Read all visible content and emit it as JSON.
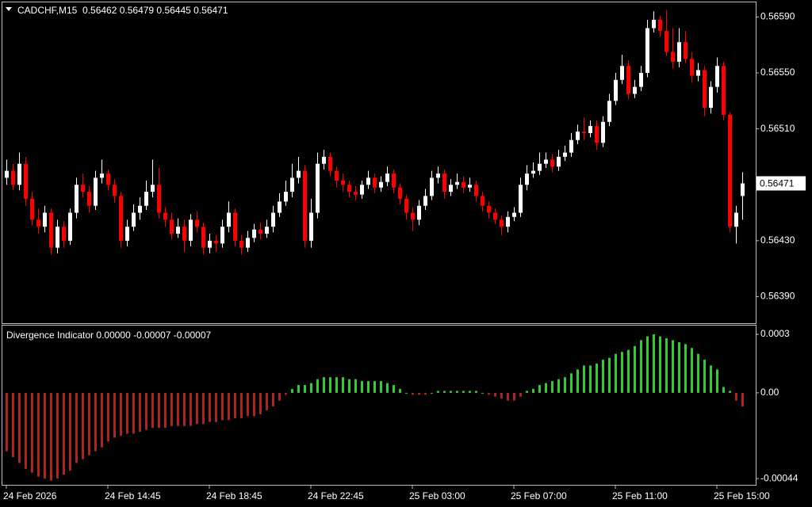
{
  "chart_data": [
    {
      "type": "candlestick",
      "title": "CADCHF,M15  0.56462 0.56479 0.56445 0.56471",
      "up_color": "#ffffff",
      "down_color": "#ff0000",
      "ylim": [
        0.56371,
        0.56601
      ],
      "yticks": [
        {
          "value": 0.5659,
          "label": "0.56590"
        },
        {
          "value": 0.5655,
          "label": "0.56550"
        },
        {
          "value": 0.5651,
          "label": "0.56510"
        },
        {
          "value": 0.5643,
          "label": "0.56430"
        },
        {
          "value": 0.5639,
          "label": "0.56390"
        }
      ],
      "xticks": [
        {
          "value": 0,
          "label": "24 Feb 2026"
        },
        {
          "value": 16,
          "label": "24 Feb 14:45"
        },
        {
          "value": 32,
          "label": "24 Feb 18:45"
        },
        {
          "value": 48,
          "label": "24 Feb 22:45"
        },
        {
          "value": 64,
          "label": "25 Feb 03:00"
        },
        {
          "value": 80,
          "label": "25 Feb 07:00"
        },
        {
          "value": 96,
          "label": "25 Feb 11:00"
        },
        {
          "value": 112,
          "label": "25 Feb 15:00"
        }
      ],
      "open": [
        0.56475,
        0.5648,
        0.5647,
        0.56485,
        0.5646,
        0.56445,
        0.5644,
        0.5645,
        0.56425,
        0.5644,
        0.5643,
        0.5645,
        0.5647,
        0.56465,
        0.56455,
        0.56475,
        0.56478,
        0.5647,
        0.56462,
        0.5643,
        0.5644,
        0.5645,
        0.56455,
        0.56465,
        0.5647,
        0.5645,
        0.56445,
        0.56435,
        0.5644,
        0.5643,
        0.56445,
        0.5644,
        0.56425,
        0.5643,
        0.56428,
        0.5644,
        0.5645,
        0.5643,
        0.56425,
        0.56432,
        0.56438,
        0.56435,
        0.5644,
        0.5645,
        0.56458,
        0.56465,
        0.56475,
        0.5648,
        0.5643,
        0.5645,
        0.56485,
        0.5649,
        0.5648,
        0.56473,
        0.5647,
        0.56465,
        0.56463,
        0.5647,
        0.56475,
        0.56468,
        0.56472,
        0.56478,
        0.56468,
        0.5646,
        0.5645,
        0.56445,
        0.56455,
        0.56462,
        0.56475,
        0.56478,
        0.56465,
        0.5647,
        0.56472,
        0.56468,
        0.5647,
        0.56462,
        0.56455,
        0.5645,
        0.56445,
        0.5644,
        0.56447,
        0.5645,
        0.5647,
        0.56478,
        0.5648,
        0.56485,
        0.56488,
        0.56483,
        0.5649,
        0.56493,
        0.56502,
        0.56508,
        0.56507,
        0.56512,
        0.565,
        0.56515,
        0.5653,
        0.56545,
        0.56555,
        0.56535,
        0.5654,
        0.5655,
        0.56582,
        0.56588,
        0.5658,
        0.56565,
        0.56558,
        0.56572,
        0.5656,
        0.56548,
        0.56552,
        0.56525,
        0.5654,
        0.56555,
        0.5652,
        0.5644,
        0.56462
      ],
      "high": [
        0.56488,
        0.56485,
        0.56493,
        0.5649,
        0.56465,
        0.56453,
        0.56455,
        0.56453,
        0.56445,
        0.56444,
        0.56453,
        0.56475,
        0.56478,
        0.56469,
        0.5648,
        0.56488,
        0.56481,
        0.56474,
        0.56465,
        0.56445,
        0.56456,
        0.56461,
        0.56473,
        0.56488,
        0.56482,
        0.56454,
        0.5645,
        0.56446,
        0.56445,
        0.56449,
        0.56451,
        0.56443,
        0.56435,
        0.56434,
        0.56445,
        0.56458,
        0.56453,
        0.56434,
        0.56437,
        0.56442,
        0.56443,
        0.56445,
        0.56455,
        0.56464,
        0.56473,
        0.56485,
        0.5649,
        0.56484,
        0.5646,
        0.56493,
        0.56495,
        0.56493,
        0.56483,
        0.56478,
        0.56473,
        0.56469,
        0.56473,
        0.5648,
        0.56478,
        0.56476,
        0.56483,
        0.56481,
        0.56471,
        0.56463,
        0.56454,
        0.56459,
        0.56467,
        0.5648,
        0.56483,
        0.56481,
        0.56474,
        0.56478,
        0.56476,
        0.56475,
        0.56473,
        0.56465,
        0.56458,
        0.56453,
        0.56448,
        0.56451,
        0.56454,
        0.56475,
        0.56484,
        0.56486,
        0.56493,
        0.56493,
        0.56492,
        0.56495,
        0.56498,
        0.56507,
        0.56513,
        0.56518,
        0.56516,
        0.56516,
        0.56519,
        0.56535,
        0.5655,
        0.56563,
        0.56559,
        0.56545,
        0.56555,
        0.56588,
        0.56594,
        0.56591,
        0.56595,
        0.56582,
        0.56582,
        0.5658,
        0.56565,
        0.56557,
        0.56555,
        0.56544,
        0.56561,
        0.56558,
        0.56522,
        0.56455,
        0.56479
      ],
      "low": [
        0.5647,
        0.56466,
        0.56466,
        0.56455,
        0.56441,
        0.56435,
        0.56436,
        0.5642,
        0.56421,
        0.56425,
        0.56427,
        0.56446,
        0.56461,
        0.5645,
        0.56452,
        0.56471,
        0.56466,
        0.56457,
        0.56425,
        0.56426,
        0.56437,
        0.56445,
        0.56452,
        0.56461,
        0.56446,
        0.5644,
        0.56431,
        0.56432,
        0.56422,
        0.56426,
        0.56436,
        0.5642,
        0.56421,
        0.56422,
        0.56425,
        0.56436,
        0.56426,
        0.5642,
        0.56422,
        0.56429,
        0.56431,
        0.56432,
        0.56436,
        0.56447,
        0.56455,
        0.56461,
        0.56471,
        0.56425,
        0.56425,
        0.56446,
        0.56481,
        0.56476,
        0.56468,
        0.56465,
        0.56461,
        0.56459,
        0.5646,
        0.56467,
        0.56464,
        0.56465,
        0.56469,
        0.56464,
        0.56456,
        0.56445,
        0.56437,
        0.56441,
        0.56452,
        0.56459,
        0.56471,
        0.5646,
        0.56462,
        0.56467,
        0.56464,
        0.56465,
        0.56458,
        0.56451,
        0.56446,
        0.56442,
        0.56434,
        0.56436,
        0.56444,
        0.56447,
        0.56466,
        0.56475,
        0.56477,
        0.56482,
        0.56479,
        0.5648,
        0.56487,
        0.5649,
        0.56499,
        0.56502,
        0.56504,
        0.56495,
        0.56497,
        0.56512,
        0.56527,
        0.56542,
        0.56531,
        0.56532,
        0.56537,
        0.56547,
        0.56579,
        0.56576,
        0.56562,
        0.56553,
        0.56554,
        0.56557,
        0.56543,
        0.56544,
        0.56519,
        0.56521,
        0.56536,
        0.56516,
        0.56436,
        0.56428,
        0.56445
      ],
      "close": [
        0.5648,
        0.5647,
        0.56485,
        0.5646,
        0.56445,
        0.5644,
        0.5645,
        0.56425,
        0.5644,
        0.5643,
        0.5645,
        0.5647,
        0.56465,
        0.56455,
        0.56475,
        0.56478,
        0.5647,
        0.56462,
        0.5643,
        0.5644,
        0.5645,
        0.56455,
        0.56465,
        0.5647,
        0.5645,
        0.56445,
        0.56435,
        0.5644,
        0.5643,
        0.56445,
        0.5644,
        0.56425,
        0.5643,
        0.56428,
        0.5644,
        0.5645,
        0.5643,
        0.56425,
        0.56432,
        0.56438,
        0.56435,
        0.5644,
        0.5645,
        0.56458,
        0.56465,
        0.56475,
        0.5648,
        0.5643,
        0.5645,
        0.56485,
        0.5649,
        0.5648,
        0.56473,
        0.5647,
        0.56465,
        0.56463,
        0.5647,
        0.56475,
        0.56468,
        0.56472,
        0.56478,
        0.56468,
        0.5646,
        0.5645,
        0.56445,
        0.56455,
        0.56462,
        0.56475,
        0.56478,
        0.56465,
        0.5647,
        0.56472,
        0.56468,
        0.5647,
        0.56462,
        0.56455,
        0.5645,
        0.56445,
        0.5644,
        0.56447,
        0.5645,
        0.5647,
        0.56478,
        0.5648,
        0.56485,
        0.56488,
        0.56483,
        0.5649,
        0.56493,
        0.56502,
        0.56508,
        0.56507,
        0.56512,
        0.565,
        0.56515,
        0.5653,
        0.56545,
        0.56555,
        0.56535,
        0.5654,
        0.5655,
        0.56582,
        0.56588,
        0.5658,
        0.56565,
        0.56558,
        0.56572,
        0.5656,
        0.56548,
        0.56552,
        0.56525,
        0.5654,
        0.56555,
        0.5652,
        0.5644,
        0.5645,
        0.56471
      ]
    },
    {
      "type": "bar",
      "title": "Divergence Indicator 0.00000 -0.00007 -0.00007",
      "up_color": "#32cd32",
      "down_color": "#b22222",
      "ylim": [
        -0.000468,
        0.000345
      ],
      "yticks": [
        0.0003,
        {
          "value": 0,
          "label": "0.00"
        },
        -0.00044
      ],
      "values": [
        -0.0003,
        -0.00033,
        -0.00036,
        -0.00039,
        -0.00041,
        -0.00043,
        -0.00044,
        -0.00045,
        -0.00044,
        -0.00042,
        -0.0004,
        -0.00036,
        -0.00034,
        -0.00032,
        -0.0003,
        -0.00028,
        -0.00025,
        -0.00023,
        -0.00022,
        -0.00021,
        -0.00021,
        -0.0002,
        -0.00019,
        -0.00018,
        -0.00018,
        -0.00018,
        -0.00017,
        -0.00017,
        -0.00017,
        -0.00017,
        -0.00016,
        -0.00016,
        -0.00015,
        -0.00015,
        -0.00014,
        -0.00014,
        -0.00013,
        -0.00013,
        -0.00012,
        -0.00012,
        -0.00011,
        -9e-05,
        -7e-05,
        -4e-05,
        -1e-05,
        2e-05,
        4e-05,
        4e-05,
        5e-05,
        7e-05,
        8e-05,
        8e-05,
        8e-05,
        8e-05,
        7e-05,
        7e-05,
        6e-05,
        6e-05,
        6e-05,
        6e-05,
        5e-05,
        4e-05,
        2e-05,
        0.0,
        -1e-05,
        -1e-05,
        -1e-05,
        0.0,
        1e-05,
        1e-05,
        1e-05,
        1e-05,
        1e-05,
        1e-05,
        1e-05,
        0.0,
        -1e-05,
        -2e-05,
        -3e-05,
        -4e-05,
        -4e-05,
        -2e-05,
        1e-05,
        2e-05,
        4e-05,
        5e-05,
        6e-05,
        7e-05,
        8e-05,
        0.0001,
        0.00012,
        0.00014,
        0.00014,
        0.00015,
        0.00017,
        0.00018,
        0.0002,
        0.00021,
        0.00022,
        0.00024,
        0.00027,
        0.00029,
        0.0003,
        0.00029,
        0.00028,
        0.00027,
        0.00026,
        0.00025,
        0.00023,
        0.0002,
        0.00017,
        0.00014,
        0.00012,
        3e-05,
        1e-05,
        -4e-05,
        -7e-05
      ]
    }
  ]
}
